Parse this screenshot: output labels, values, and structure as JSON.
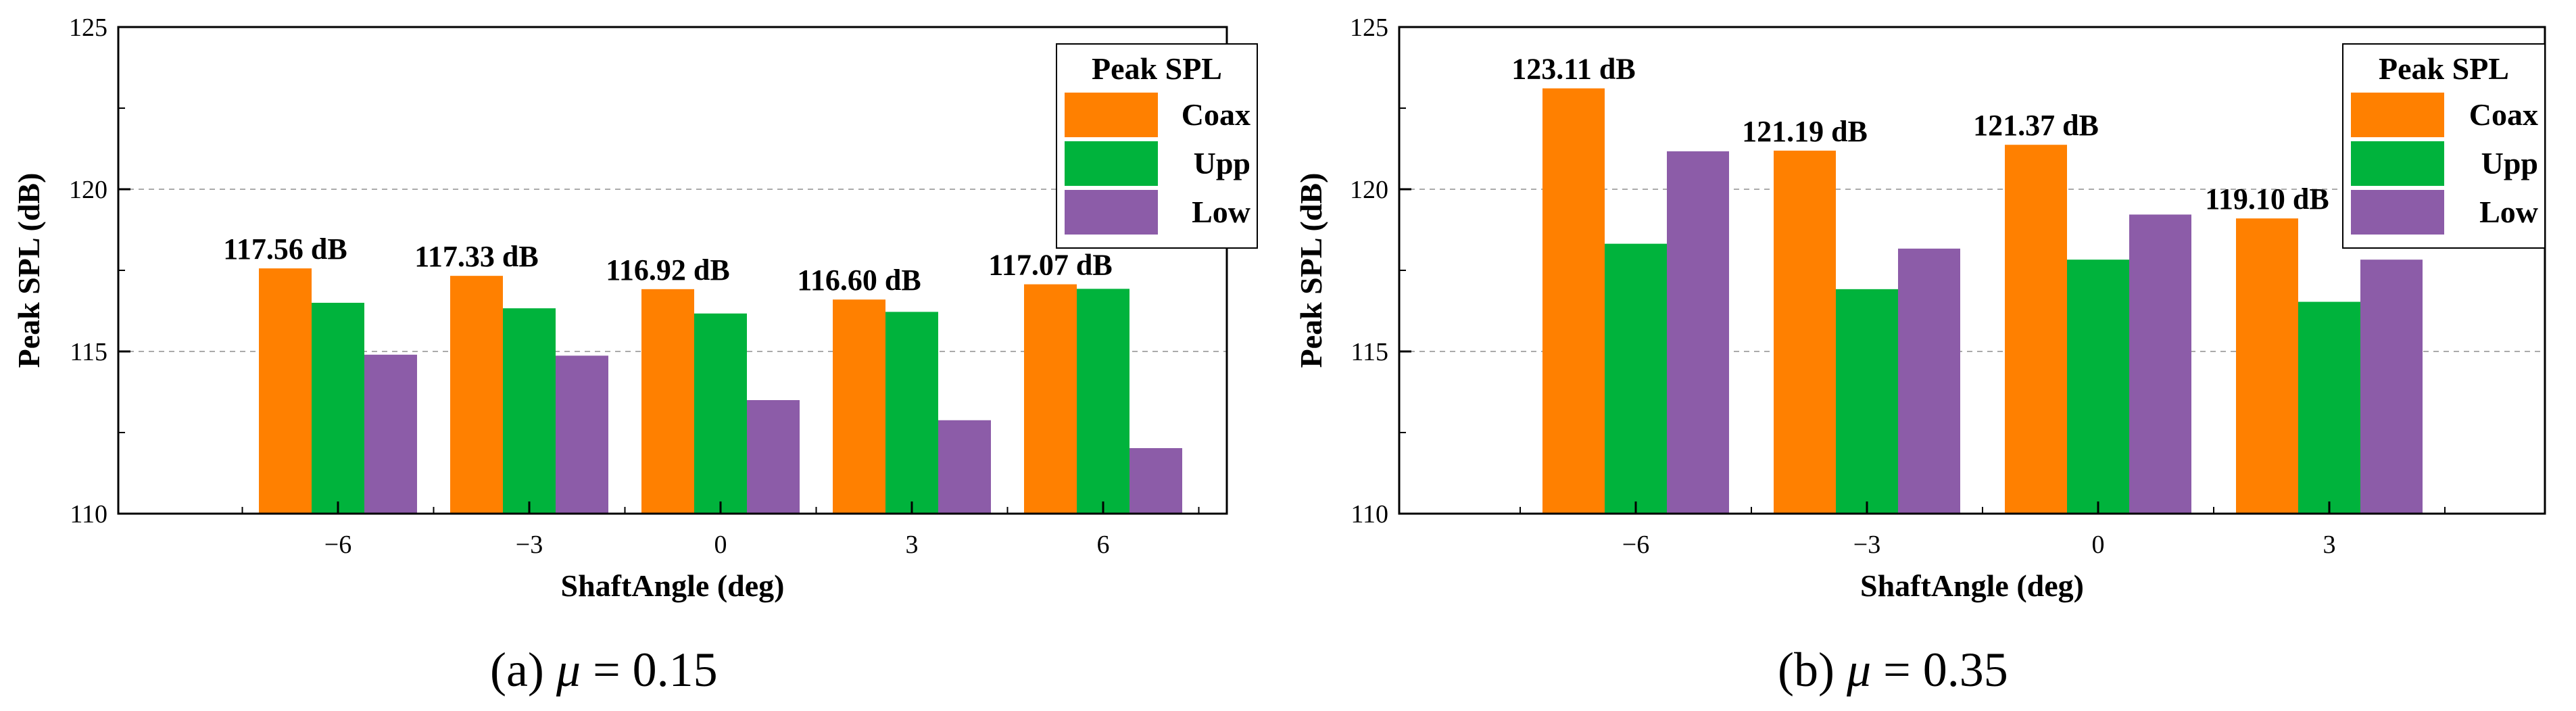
{
  "chart_data": [
    {
      "type": "bar",
      "panel": "a",
      "xlabel": "ShaftAngle (deg)",
      "ylabel": "Peak SPL (dB)",
      "ylim": [
        110,
        125
      ],
      "yticks": [
        110,
        115,
        120,
        125
      ],
      "gridlines": [
        115,
        120
      ],
      "categories": [
        "−6",
        "−3",
        "0",
        "3",
        "6"
      ],
      "series": [
        {
          "name": "Coax",
          "color": "#ff8000",
          "values": [
            117.56,
            117.33,
            116.92,
            116.6,
            117.07
          ]
        },
        {
          "name": "Upp",
          "color": "#00b33c",
          "values": [
            116.5,
            116.33,
            116.17,
            116.22,
            116.93
          ]
        },
        {
          "name": "Low",
          "color": "#8c5ca8",
          "values": [
            114.9,
            114.87,
            113.5,
            112.88,
            112.02
          ]
        }
      ],
      "data_labels": [
        "117.56 dB",
        "117.33 dB",
        "116.92 dB",
        "116.60 dB",
        "117.07 dB"
      ],
      "legend": {
        "title": "Peak SPL",
        "position": "top-right"
      },
      "caption": {
        "label": "(a)",
        "symbol": "μ",
        "value": "= 0.15"
      }
    },
    {
      "type": "bar",
      "panel": "b",
      "xlabel": "ShaftAngle (deg)",
      "ylabel": "Peak SPL (dB)",
      "ylim": [
        110,
        125
      ],
      "yticks": [
        110,
        115,
        120,
        125
      ],
      "gridlines": [
        115,
        120
      ],
      "categories": [
        "−6",
        "−3",
        "0",
        "3"
      ],
      "series": [
        {
          "name": "Coax",
          "color": "#ff8000",
          "values": [
            123.11,
            121.19,
            121.37,
            119.1
          ]
        },
        {
          "name": "Upp",
          "color": "#00b33c",
          "values": [
            118.32,
            116.92,
            117.83,
            116.53
          ]
        },
        {
          "name": "Low",
          "color": "#8c5ca8",
          "values": [
            121.17,
            118.17,
            119.22,
            117.83
          ]
        }
      ],
      "data_labels": [
        "123.11 dB",
        "121.19 dB",
        "121.37 dB",
        "119.10 dB"
      ],
      "legend": {
        "title": "Peak SPL",
        "position": "top-right"
      },
      "caption": {
        "label": "(b)",
        "symbol": "μ",
        "value": "= 0.35"
      }
    }
  ]
}
